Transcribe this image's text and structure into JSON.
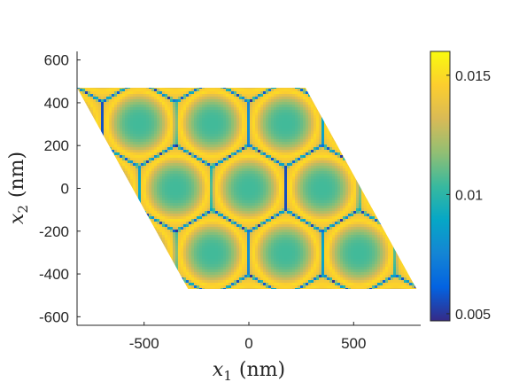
{
  "chart_data": {
    "type": "heatmap",
    "title": "",
    "xlabel": {
      "symbol": "x",
      "sub": "1",
      "unit": "(nm)"
    },
    "ylabel": {
      "symbol": "x",
      "sub": "2",
      "unit": "(nm)"
    },
    "xlim": [
      -820,
      820
    ],
    "ylim": [
      -640,
      640
    ],
    "xticks": [
      -500,
      0,
      500
    ],
    "yticks": [
      600,
      400,
      200,
      0,
      -200,
      -400,
      -600
    ],
    "xtick_labels": [
      "-500",
      "0",
      "500"
    ],
    "ytick_labels": [
      "600",
      "400",
      "200",
      "0",
      "-200",
      "-400",
      "-600"
    ],
    "grid": false,
    "domain_polygon": [
      [
        -820,
        470
      ],
      [
        270,
        470
      ],
      [
        800,
        -470
      ],
      [
        -290,
        -470
      ]
    ],
    "lattice": {
      "a1": [
        350,
        0
      ],
      "a2": [
        175,
        303
      ],
      "spot_radius": 150
    },
    "spot_value": 0.0105,
    "rim_value": 0.015,
    "gap_min_value": 0.005,
    "colorbar": {
      "range": [
        0.0047,
        0.016
      ],
      "ticks": [
        0.015,
        0.01,
        0.005
      ],
      "tick_labels": [
        "0.015",
        "0.01",
        "0.005"
      ],
      "colormap": "parula",
      "stops": [
        "#352a87",
        "#0363e1",
        "#1485d4",
        "#06a7c6",
        "#38b99e",
        "#92bf73",
        "#d9ba56",
        "#fcce2e",
        "#f9fb0e"
      ]
    }
  }
}
